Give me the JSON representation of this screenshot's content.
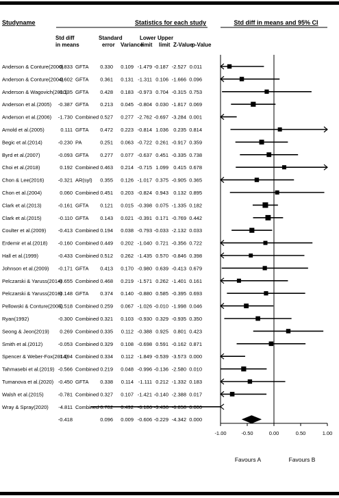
{
  "headers": {
    "studyname": "Studyname",
    "stats_title": "Statistics for each study",
    "plot_title": "Std diff in means and 95% CI",
    "col_std_diff": [
      "Std diff",
      "in means"
    ],
    "col_standard_error": [
      "Standard",
      "error"
    ],
    "col_variance": "Variance",
    "col_lower_limit": [
      "Lower",
      "limit"
    ],
    "col_upper_limit": [
      "Upper",
      "limit"
    ],
    "col_z": "Z-Value",
    "col_p": "p-Value"
  },
  "footer": {
    "favours_a": "Favours A",
    "favours_b": "Favours B"
  },
  "chart_data": {
    "type": "forest",
    "title": "Std diff in means and 95% CI",
    "xlim": [
      -1.0,
      1.0
    ],
    "x_tick_labels": [
      "-1.00",
      "-0.50",
      "0.00",
      "0.50",
      "1.00"
    ],
    "x_tick_values": [
      -1.0,
      -0.5,
      0.0,
      0.5,
      1.0
    ],
    "studies": [
      {
        "name": "Anderson & Conture(2000)",
        "type": "GFTA",
        "std_diff": "-0.833",
        "se": "0.330",
        "variance": "0.109",
        "lower": "-1.479",
        "upper": "-0.187",
        "z": "-2.527",
        "p": "0.011",
        "weight": 0.6
      },
      {
        "name": "Anderson & Conture(2004)",
        "type": "GFTA",
        "std_diff": "-0.602",
        "se": "0.361",
        "variance": "0.131",
        "lower": "-1.311",
        "upper": "0.106",
        "z": "-1.666",
        "p": "0.096",
        "weight": 0.6
      },
      {
        "name": "Anderson & Wagovich(2010)",
        "type": "GFTA",
        "std_diff": "-0.135",
        "se": "0.428",
        "variance": "0.183",
        "lower": "-0.973",
        "upper": "0.704",
        "z": "-0.315",
        "p": "0.753",
        "weight": 0.55
      },
      {
        "name": "Anderson et al.(2005)",
        "type": "GFTA",
        "std_diff": "-0.387",
        "se": "0.213",
        "variance": "0.045",
        "lower": "-0.804",
        "upper": "0.030",
        "z": "-1.817",
        "p": "0.069",
        "weight": 0.8
      },
      {
        "name": "Anderson et al.(2006)",
        "type": "Combined",
        "std_diff": "-1.730",
        "se": "0.527",
        "variance": "0.277",
        "lower": "-2.762",
        "upper": "-0.697",
        "z": "-3.284",
        "p": "0.001",
        "weight": 0.45
      },
      {
        "name": "Arnold et al.(2005)",
        "type": "GFTA",
        "std_diff": "0.111",
        "se": "0.472",
        "variance": "0.223",
        "lower": "-0.814",
        "upper": "1.036",
        "z": "0.235",
        "p": "0.814",
        "weight": 0.5
      },
      {
        "name": "Begic et al.(2014)",
        "type": "PA",
        "std_diff": "-0.230",
        "se": "0.251",
        "variance": "0.063",
        "lower": "-0.722",
        "upper": "0.261",
        "z": "-0.917",
        "p": "0.359",
        "weight": 0.75
      },
      {
        "name": "Byrd et al.(2007)",
        "type": "GFTA",
        "std_diff": "-0.093",
        "se": "0.277",
        "variance": "0.077",
        "lower": "-0.637",
        "upper": "0.451",
        "z": "-0.335",
        "p": "0.738",
        "weight": 0.7
      },
      {
        "name": "Choi et al.(2018)",
        "type": "Combined",
        "std_diff": "0.192",
        "se": "0.463",
        "variance": "0.214",
        "lower": "-0.715",
        "upper": "1.099",
        "z": "0.415",
        "p": "0.678",
        "weight": 0.5
      },
      {
        "name": "Chon & Lee(2016)",
        "type": "AR(syl)",
        "std_diff": "-0.321",
        "se": "0.355",
        "variance": "0.126",
        "lower": "-1.017",
        "upper": "0.375",
        "z": "-0.905",
        "p": "0.365",
        "weight": 0.6
      },
      {
        "name": "Chon et al.(2004)",
        "type": "Combined",
        "std_diff": "0.060",
        "se": "0.451",
        "variance": "0.203",
        "lower": "-0.824",
        "upper": "0.943",
        "z": "0.132",
        "p": "0.895",
        "weight": 0.5
      },
      {
        "name": "Clark et al.(2013)",
        "type": "GFTA",
        "std_diff": "-0.161",
        "se": "0.121",
        "variance": "0.015",
        "lower": "-0.398",
        "upper": "0.075",
        "z": "-1.335",
        "p": "0.182",
        "weight": 1.0
      },
      {
        "name": "Clark et al.(2015)",
        "type": "GFTA",
        "std_diff": "-0.110",
        "se": "0.143",
        "variance": "0.021",
        "lower": "-0.391",
        "upper": "0.171",
        "z": "-0.769",
        "p": "0.442",
        "weight": 0.95
      },
      {
        "name": "Coulter et al.(2009)",
        "type": "Combined",
        "std_diff": "-0.413",
        "se": "0.194",
        "variance": "0.038",
        "lower": "-0.793",
        "upper": "-0.033",
        "z": "-2.132",
        "p": "0.033",
        "weight": 0.8
      },
      {
        "name": "Erdemir et al.(2018)",
        "type": "Combined",
        "std_diff": "-0.160",
        "se": "0.449",
        "variance": "0.202",
        "lower": "-1.040",
        "upper": "0.721",
        "z": "-0.356",
        "p": "0.722",
        "weight": 0.5
      },
      {
        "name": "Hall et al.(1999)",
        "type": "Combined",
        "std_diff": "-0.433",
        "se": "0.512",
        "variance": "0.262",
        "lower": "-1.435",
        "upper": "0.570",
        "z": "-0.846",
        "p": "0.398",
        "weight": 0.45
      },
      {
        "name": "Johnson et al.(2009)",
        "type": "GFTA",
        "std_diff": "-0.171",
        "se": "0.413",
        "variance": "0.170",
        "lower": "-0.980",
        "upper": "0.639",
        "z": "-0.413",
        "p": "0.679",
        "weight": 0.55
      },
      {
        "name": "Pelczarski & Yaruss(2014)",
        "type": "Combined",
        "std_diff": "-0.655",
        "se": "0.468",
        "variance": "0.219",
        "lower": "-1.571",
        "upper": "0.262",
        "z": "-1.401",
        "p": "0.161",
        "weight": 0.5
      },
      {
        "name": "Pelczarski & Yaruss(2016)",
        "type": "GFTA",
        "std_diff": "-0.148",
        "se": "0.374",
        "variance": "0.140",
        "lower": "-0.880",
        "upper": "0.585",
        "z": "-0.395",
        "p": "0.693",
        "weight": 0.55
      },
      {
        "name": "Pellowski & Conture(2005)",
        "type": "Combined",
        "std_diff": "-0.518",
        "se": "0.259",
        "variance": "0.067",
        "lower": "-1.026",
        "upper": "-0.010",
        "z": "-1.998",
        "p": "0.046",
        "weight": 0.7
      },
      {
        "name": "Ryan(1992)",
        "type": "Combined",
        "std_diff": "-0.300",
        "se": "0.321",
        "variance": "0.103",
        "lower": "-0.930",
        "upper": "0.329",
        "z": "-0.935",
        "p": "0.350",
        "weight": 0.65
      },
      {
        "name": "Seong & Jeon(2019)",
        "type": "Combined",
        "std_diff": "0.269",
        "se": "0.335",
        "variance": "0.112",
        "lower": "-0.388",
        "upper": "0.925",
        "z": "0.801",
        "p": "0.423",
        "weight": 0.6
      },
      {
        "name": "Smith et al.(2012)",
        "type": "Combined",
        "std_diff": "-0.053",
        "se": "0.329",
        "variance": "0.108",
        "lower": "-0.698",
        "upper": "0.591",
        "z": "-0.162",
        "p": "0.871",
        "weight": 0.65
      },
      {
        "name": "Spencer & Weber-Fox(2014)",
        "type": "Combined",
        "std_diff": "-1.194",
        "se": "0.334",
        "variance": "0.112",
        "lower": "-1.849",
        "upper": "-0.539",
        "z": "-3.573",
        "p": "0.000",
        "weight": 0.6
      },
      {
        "name": "Tahmasebi et al.(2019)",
        "type": "Combined",
        "std_diff": "-0.566",
        "se": "0.219",
        "variance": "0.048",
        "lower": "-0.996",
        "upper": "-0.136",
        "z": "-2.580",
        "p": "0.010",
        "weight": 0.8
      },
      {
        "name": "Tumanova et al.(2020)",
        "type": "GFTA",
        "std_diff": "-0.450",
        "se": "0.338",
        "variance": "0.114",
        "lower": "-1.111",
        "upper": "0.212",
        "z": "-1.332",
        "p": "0.183",
        "weight": 0.6
      },
      {
        "name": "Walsh et al.(2015)",
        "type": "Combined",
        "std_diff": "-0.781",
        "se": "0.327",
        "variance": "0.107",
        "lower": "-1.421",
        "upper": "-0.140",
        "z": "-2.388",
        "p": "0.017",
        "weight": 0.65
      },
      {
        "name": "Wray & Spray(2020)",
        "type": "Combined",
        "std_diff": "-4.811",
        "se": "0.702",
        "variance": "0.492",
        "lower": "-6.186",
        "upper": "-3.436",
        "z": "-6.858",
        "p": "0.000",
        "weight": 0.4
      }
    ],
    "summary": {
      "std_diff": "-0.418",
      "se": "0.096",
      "variance": "0.009",
      "lower": "-0.606",
      "upper": "-0.229",
      "z": "-4.342",
      "p": "0.000"
    }
  }
}
